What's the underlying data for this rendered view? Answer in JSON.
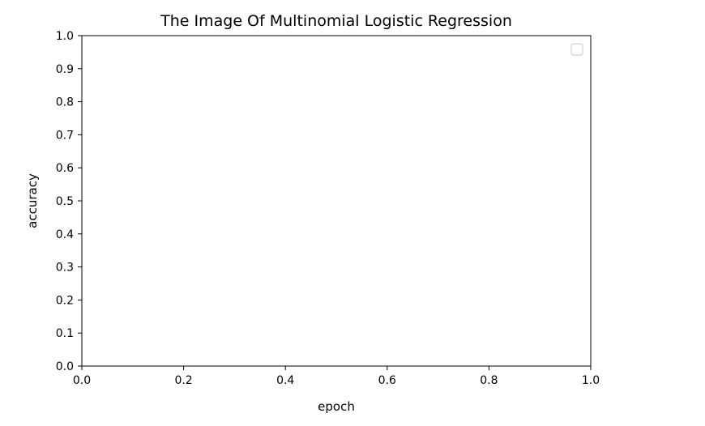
{
  "chart_data": {
    "type": "line",
    "title": "The Image Of Multinomial Logistic Regression",
    "xlabel": "epoch",
    "ylabel": "accuracy",
    "xlim": [
      0.0,
      1.0
    ],
    "ylim": [
      0.0,
      1.0
    ],
    "x_ticks": [
      "0.0",
      "0.2",
      "0.4",
      "0.6",
      "0.8",
      "1.0"
    ],
    "y_ticks": [
      "0.0",
      "0.1",
      "0.2",
      "0.3",
      "0.4",
      "0.5",
      "0.6",
      "0.7",
      "0.8",
      "0.9",
      "1.0"
    ],
    "series": [],
    "legend": {
      "position": "top-right",
      "entries": []
    },
    "grid": false
  }
}
